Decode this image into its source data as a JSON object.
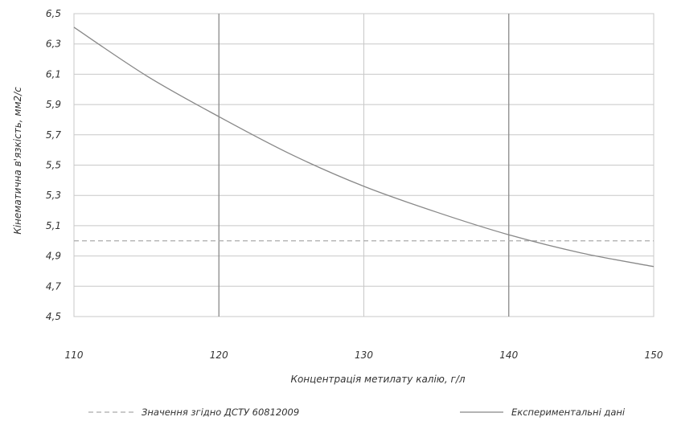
{
  "chart_data": {
    "type": "line",
    "title": "",
    "xlabel": "Концентрація метилату калію, г/л",
    "ylabel": "Кінематична в'язкість, мм2/с",
    "xlim": [
      110,
      150
    ],
    "ylim": [
      4.5,
      6.5
    ],
    "x_ticks": [
      "110",
      "120",
      "130",
      "140",
      "150"
    ],
    "y_ticks": [
      "6,5",
      "6,3",
      "6,1",
      "5,9",
      "5,7",
      "5,5",
      "5,3",
      "5,1",
      "4,9",
      "4,7",
      "4,5"
    ],
    "grid": true,
    "legend_position": "bottom",
    "series": [
      {
        "name": "Значення згідно ДСТУ 60812009",
        "style": "dashed",
        "color": "#aaaaaa",
        "x": [
          110,
          150
        ],
        "y": [
          5.0,
          5.0
        ]
      },
      {
        "name": "Експериментальні дані",
        "style": "solid",
        "color": "#888888",
        "x": [
          110,
          115,
          120,
          125,
          130,
          135,
          140,
          145,
          150
        ],
        "y": [
          6.41,
          6.09,
          5.82,
          5.57,
          5.36,
          5.19,
          5.04,
          4.92,
          4.83
        ]
      }
    ]
  }
}
